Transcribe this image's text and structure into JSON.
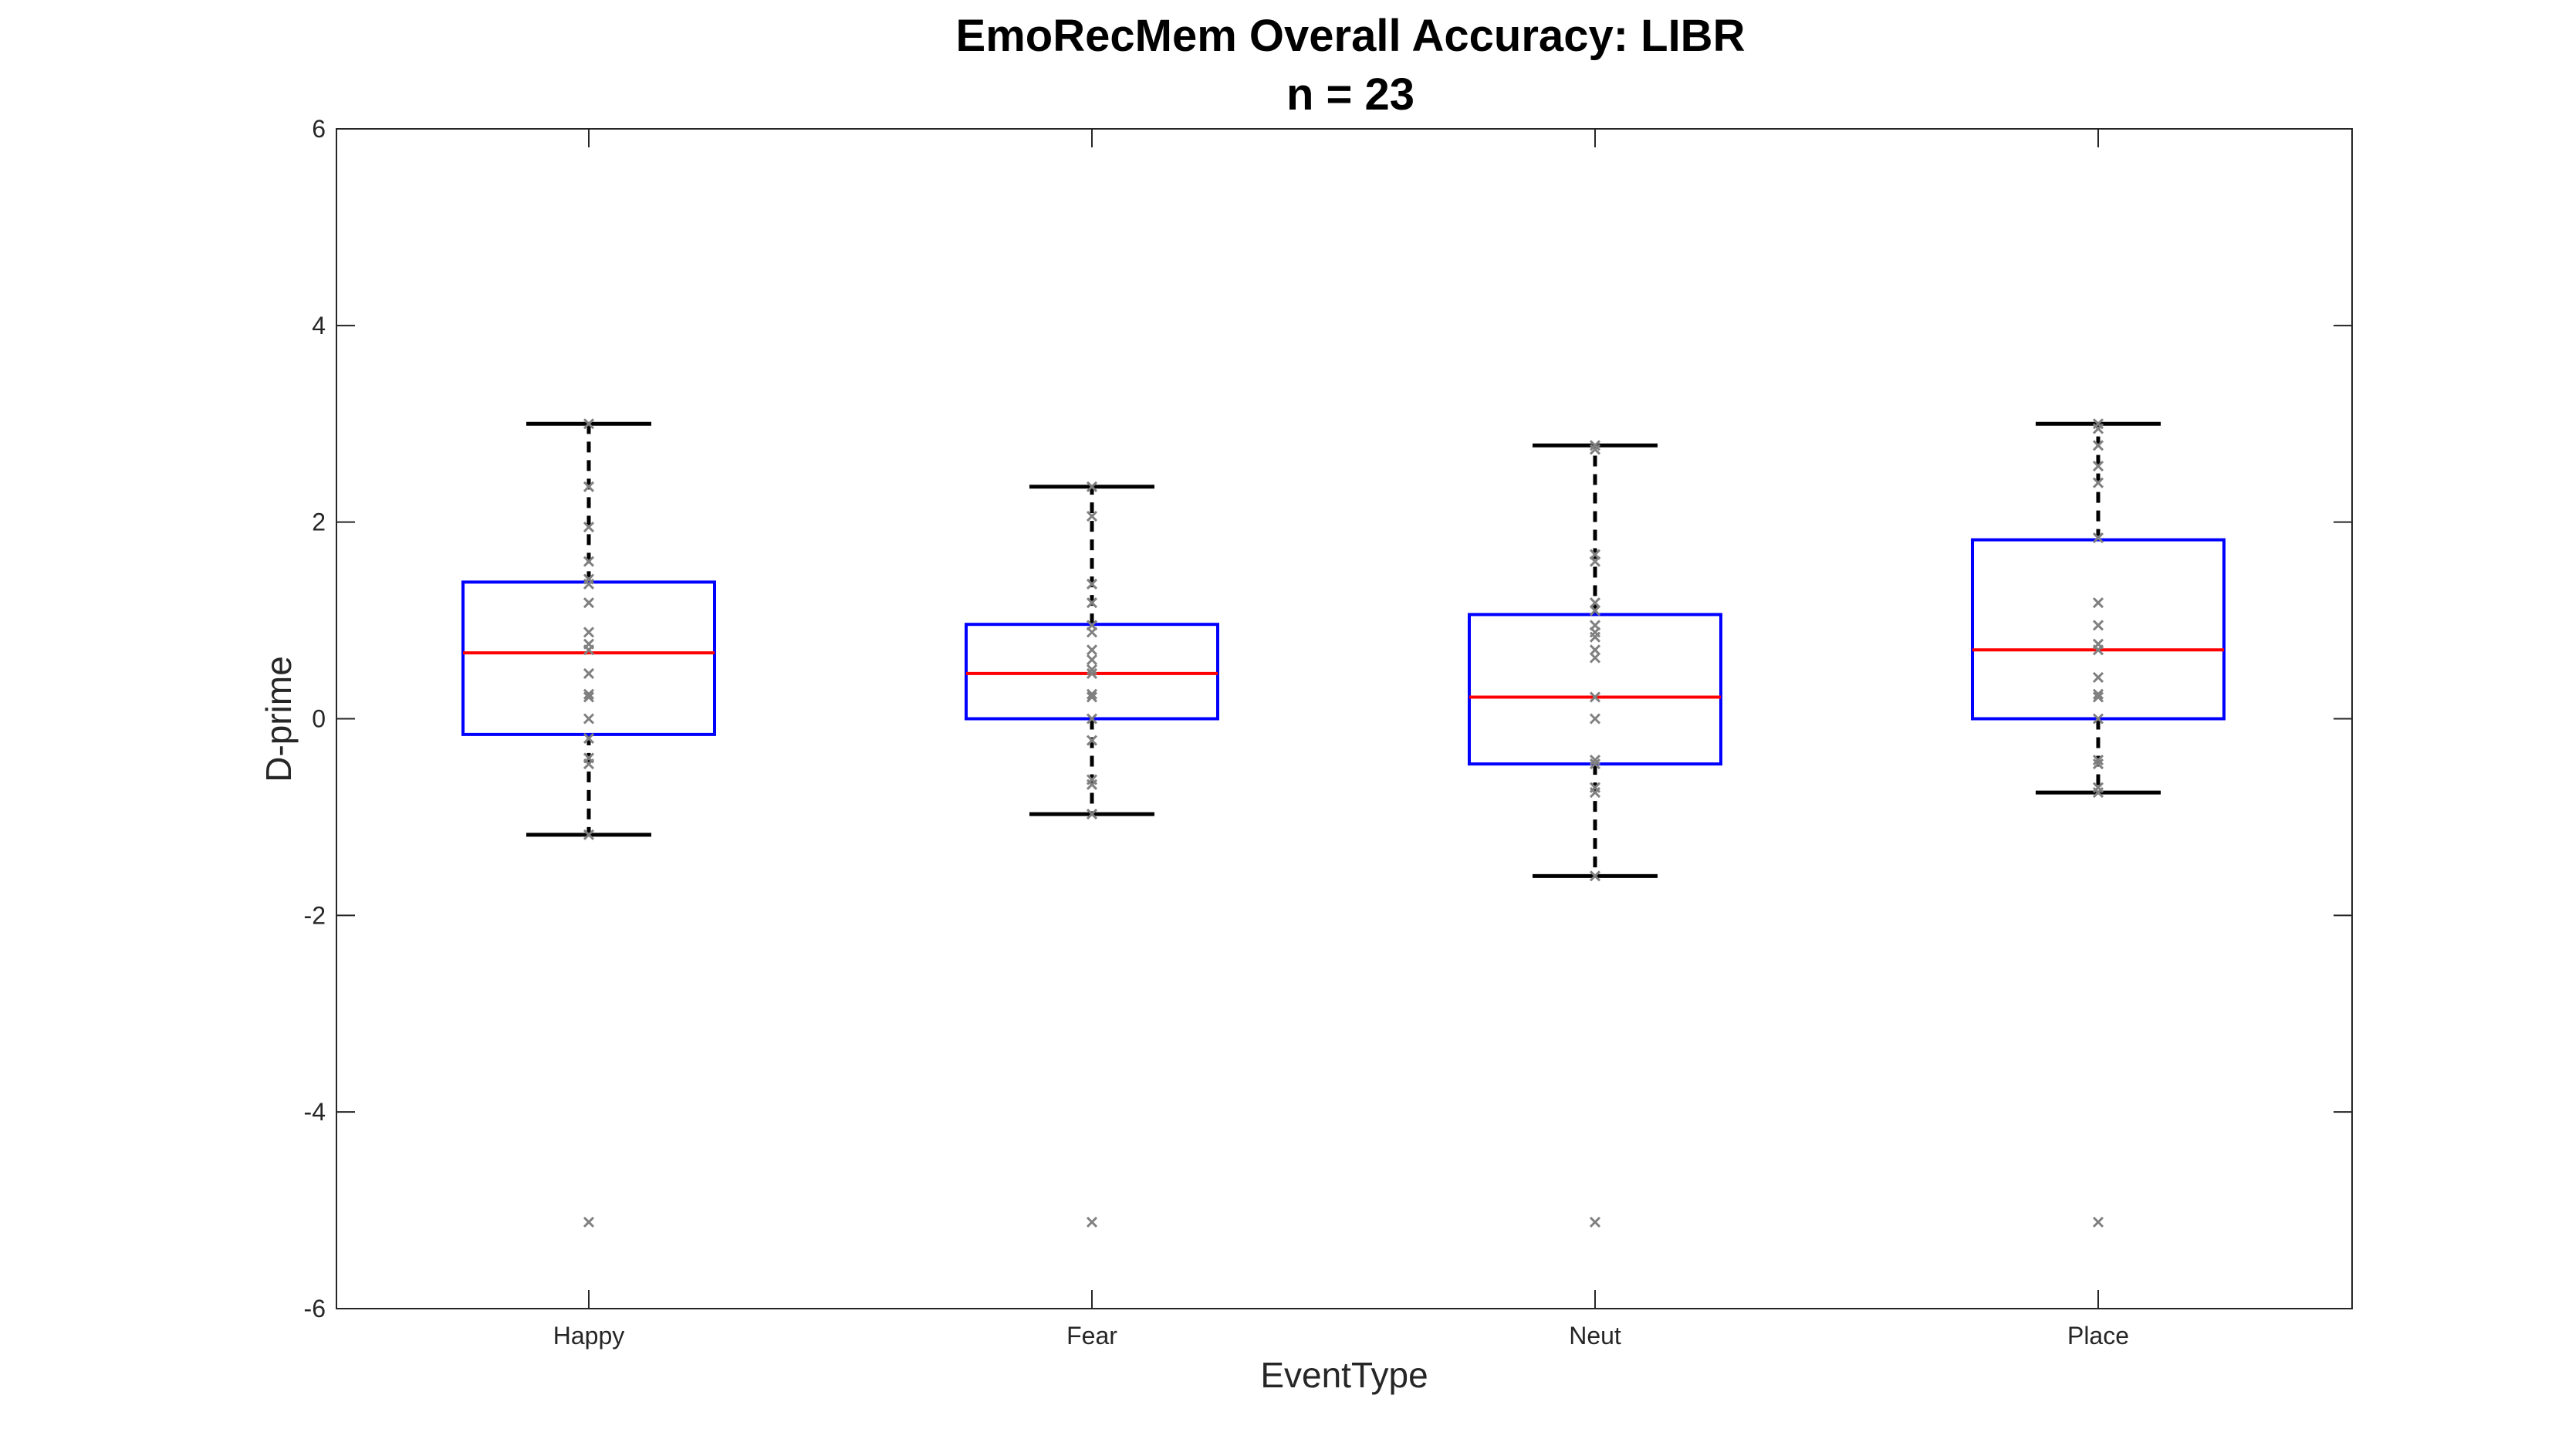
{
  "chart_data": {
    "type": "box",
    "title": "EmoRecMem Overall Accuracy: LIBR",
    "subtitle": "n = 23",
    "xlabel": "EventType",
    "ylabel": "D-prime",
    "ylim": [
      -6,
      6
    ],
    "yticks": [
      -6,
      -4,
      -2,
      0,
      2,
      4,
      6
    ],
    "categories": [
      "Happy",
      "Fear",
      "Neut",
      "Place"
    ],
    "boxes": [
      {
        "category": "Happy",
        "whisker_low": -1.18,
        "q1": -0.16,
        "median": 0.67,
        "q3": 1.39,
        "whisker_high": 3.0,
        "points": [
          3.0,
          2.36,
          1.95,
          1.6,
          1.42,
          1.37,
          1.18,
          0.88,
          0.76,
          0.7,
          0.46,
          0.25,
          0.22,
          0.0,
          -0.2,
          -0.4,
          -0.46,
          -1.18,
          -5.12
        ]
      },
      {
        "category": "Fear",
        "whisker_low": -0.97,
        "q1": 0.0,
        "median": 0.46,
        "q3": 0.96,
        "whisker_high": 2.36,
        "points": [
          2.36,
          2.06,
          1.37,
          1.18,
          0.95,
          0.88,
          0.7,
          0.6,
          0.5,
          0.46,
          0.25,
          0.22,
          0.0,
          -0.22,
          -0.62,
          -0.67,
          -0.97,
          -5.12
        ]
      },
      {
        "category": "Neut",
        "whisker_low": -1.6,
        "q1": -0.46,
        "median": 0.22,
        "q3": 1.06,
        "whisker_high": 2.78,
        "points": [
          2.78,
          2.74,
          1.67,
          1.6,
          1.18,
          1.1,
          0.95,
          0.88,
          0.83,
          0.7,
          0.62,
          0.22,
          0.0,
          -0.42,
          -0.46,
          -0.7,
          -0.75,
          -1.6,
          -5.12
        ]
      },
      {
        "category": "Place",
        "whisker_low": -0.75,
        "q1": 0.0,
        "median": 0.7,
        "q3": 1.82,
        "whisker_high": 3.0,
        "points": [
          3.0,
          2.95,
          2.78,
          2.57,
          2.4,
          1.84,
          1.18,
          0.95,
          0.76,
          0.7,
          0.42,
          0.25,
          0.22,
          0.0,
          -0.42,
          -0.46,
          -0.7,
          -0.75,
          -5.12
        ]
      }
    ],
    "colors": {
      "box": "#0000ff",
      "median": "#ff0000",
      "whisker": "#000000",
      "points": "#808080",
      "axes": "#262626"
    },
    "grid": false,
    "legend": "none"
  }
}
